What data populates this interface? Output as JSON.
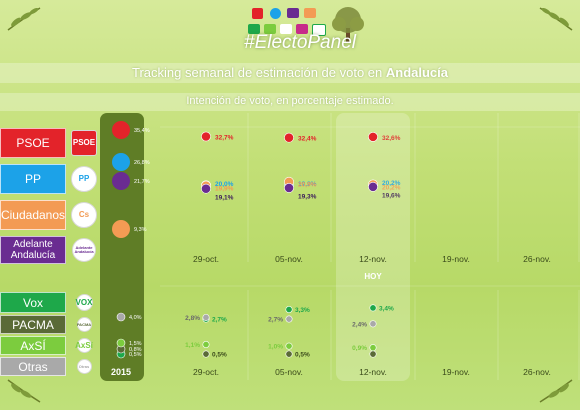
{
  "header": {
    "hashtag": "#ElectoPanel",
    "title_prefix": "Tracking semanal de estimación de voto en ",
    "title_region": "Andalucía",
    "subtitle": "Intención de voto, en porcentaje estimado."
  },
  "colors": {
    "PSOE": "#e3232a",
    "PP": "#1ca2e8",
    "Ciudadanos": "#f39b54",
    "Adelante": "#6a2c91",
    "Vox": "#1ea84a",
    "PACMA": "#5a6a37",
    "AxSi": "#7ccc3e",
    "Otras": "#a9a9a9"
  },
  "parties": [
    {
      "key": "PSOE",
      "label": "PSOE",
      "logo_text": "PSOE",
      "logo_icon": "psoe-logo-icon"
    },
    {
      "key": "PP",
      "label": "PP",
      "logo_text": "PP",
      "logo_icon": "pp-logo-icon"
    },
    {
      "key": "Ciudadanos",
      "label": "Ciudadanos",
      "logo_text": "Cs",
      "logo_icon": "cs-logo-icon"
    },
    {
      "key": "Adelante",
      "label": "Adelante Andalucía",
      "logo_text": "Adelante Andalucía",
      "logo_icon": "adelante-logo-icon"
    },
    {
      "key": "Vox",
      "label": "Vox",
      "logo_text": "VOX",
      "logo_icon": "vox-logo-icon"
    },
    {
      "key": "PACMA",
      "label": "PACMA",
      "logo_text": "PACMA",
      "logo_icon": "pacma-logo-icon"
    },
    {
      "key": "AxSi",
      "label": "AxSÍ",
      "logo_text": "AxSí",
      "logo_icon": "axsi-logo-icon"
    },
    {
      "key": "Otras",
      "label": "Otras",
      "logo_text": "Otras",
      "logo_icon": "others-logo-icon"
    }
  ],
  "chart_data": {
    "type": "scatter",
    "title": "Tracking semanal de estimación de voto en Andalucía",
    "subtitle": "Intención de voto, en porcentaje estimado.",
    "categories": [
      "2015",
      "29-oct.",
      "05-nov.",
      "12-nov.",
      "19-nov.",
      "26-nov."
    ],
    "highlight_label": "HOY",
    "highlight_category": "12-nov.",
    "series": [
      {
        "name": "PSOE",
        "values": [
          35.4,
          32.7,
          32.4,
          32.6,
          null,
          null
        ],
        "labels": [
          "35,4%",
          "32,7%",
          "32,4%",
          "32,6%",
          "",
          ""
        ]
      },
      {
        "name": "PP",
        "values": [
          26.8,
          20.0,
          19.9,
          20.2,
          null,
          null
        ],
        "labels": [
          "26,8%",
          "20,0%",
          "19,9%",
          "20,2%",
          "",
          ""
        ]
      },
      {
        "name": "Ciudadanos",
        "values": [
          9.3,
          19.9,
          20.9,
          20.2,
          null,
          null
        ],
        "labels": [
          "9,3%",
          "19,9%",
          "20,9%",
          "20,2%",
          "",
          ""
        ]
      },
      {
        "name": "Adelante Andalucía",
        "values": [
          21.7,
          19.1,
          19.3,
          19.6,
          null,
          null
        ],
        "labels": [
          "21,7%",
          "19,1%",
          "19,3%",
          "19,6%",
          "",
          ""
        ]
      },
      {
        "name": "Vox",
        "values": [
          0.5,
          2.7,
          3.3,
          3.4,
          null,
          null
        ],
        "labels": [
          "0,5%",
          "2,7%",
          "3,3%",
          "3,4%",
          "",
          ""
        ]
      },
      {
        "name": "PACMA",
        "values": [
          0.8,
          0.5,
          0.5,
          0.5,
          null,
          null
        ],
        "labels": [
          "0,8%",
          "0,5%",
          "0,5%",
          "",
          "",
          ""
        ]
      },
      {
        "name": "AxSÍ",
        "values": [
          1.5,
          1.1,
          1.0,
          0.9,
          null,
          null
        ],
        "labels": [
          "1,5%",
          "1,1%",
          "1,0%",
          "0,9%",
          "",
          ""
        ]
      },
      {
        "name": "Otras",
        "values": [
          4.0,
          2.8,
          2.7,
          2.4,
          null,
          null
        ],
        "labels": [
          "4,0%",
          "2,8%",
          "2,7%",
          "2,4%",
          "",
          ""
        ]
      }
    ]
  }
}
